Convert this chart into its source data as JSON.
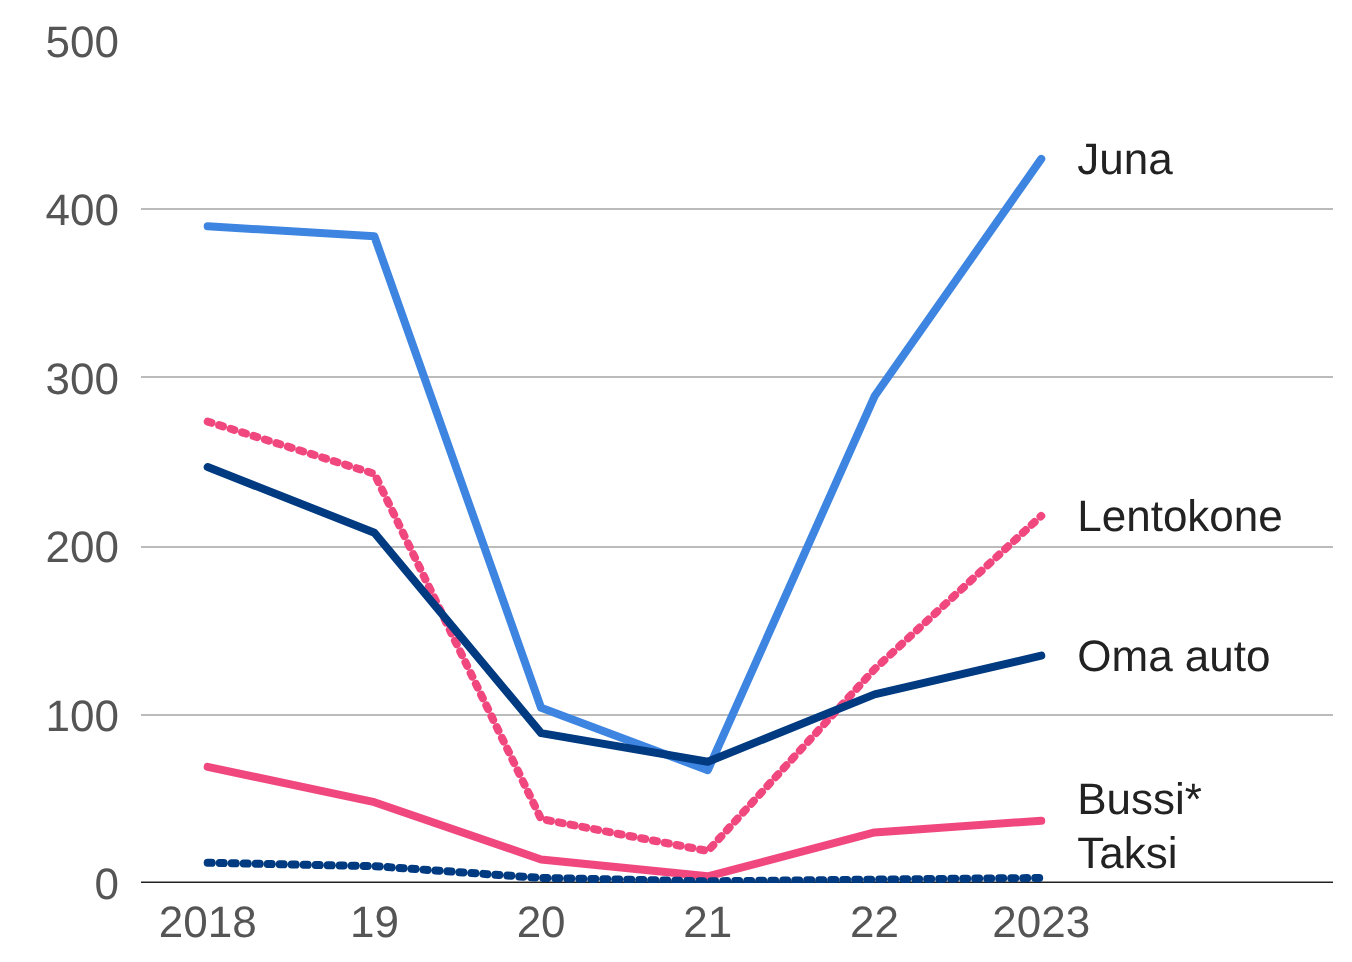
{
  "chart_data": {
    "type": "line",
    "x": [
      2018,
      2019,
      2020,
      2021,
      2022,
      2023
    ],
    "xticks": [
      {
        "value": 2018,
        "label": "2018"
      },
      {
        "value": 2019,
        "label": "19"
      },
      {
        "value": 2020,
        "label": "20"
      },
      {
        "value": 2021,
        "label": "21"
      },
      {
        "value": 2022,
        "label": "22"
      },
      {
        "value": 2023,
        "label": "2023"
      }
    ],
    "xlim": [
      2017.6,
      2024.75
    ],
    "ylim": [
      0,
      500
    ],
    "yticks": [
      0,
      100,
      200,
      300,
      400,
      500
    ],
    "grid": "y",
    "legend": false,
    "series": [
      {
        "name": "Juna",
        "color": "#3d85e0",
        "line_style": "solid",
        "values": [
          390,
          384,
          104,
          67,
          289,
          430
        ]
      },
      {
        "name": "Lentokone",
        "color": "#f0487e",
        "line_style": "dotted",
        "values": [
          274,
          243,
          38,
          19,
          127,
          218
        ]
      },
      {
        "name": "Oma auto",
        "color": "#003a80",
        "line_style": "solid",
        "values": [
          247,
          208,
          89,
          72,
          112,
          135
        ]
      },
      {
        "name": "Bussi*",
        "color": "#f0487e",
        "line_style": "solid",
        "values": [
          69,
          48,
          14,
          4,
          30,
          37
        ]
      },
      {
        "name": "Taksi",
        "color": "#003a80",
        "line_style": "dotted",
        "values": [
          12,
          10,
          3,
          1,
          2,
          3
        ]
      }
    ]
  }
}
